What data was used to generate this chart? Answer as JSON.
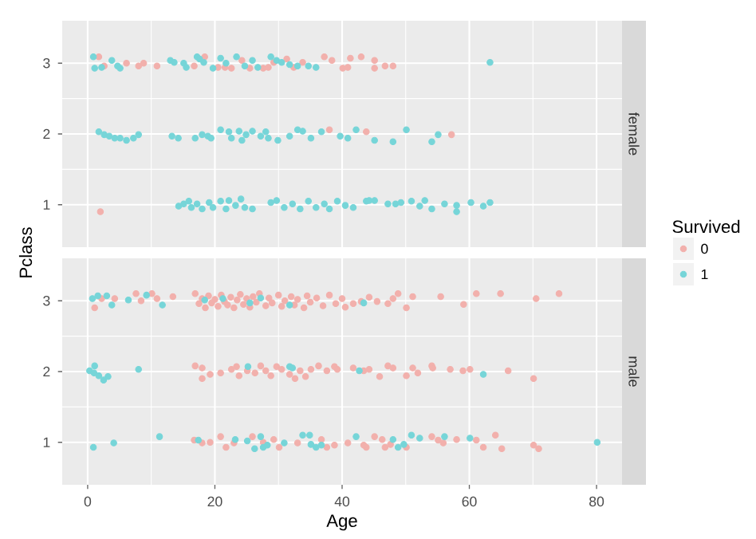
{
  "chart_data": [
    {
      "type": "scatter",
      "title": "female",
      "ylabel": "Pclass",
      "legend_title": "Survived",
      "legend": "right",
      "xlim": [
        -4,
        84
      ],
      "xticks": [
        0,
        20,
        40,
        60,
        80
      ],
      "ylim": [
        0.4,
        3.6
      ],
      "yticks": [
        1,
        2,
        3
      ],
      "tick_labels": "y",
      "grid": true,
      "marker": "circle",
      "series": [
        {
          "name": "0",
          "color": "#f2b0ac",
          "x": [
            1.75,
            2.6,
            6.1,
            8,
            8.8,
            10.9,
            16.75,
            18.4,
            20.5,
            21.6,
            22.6,
            24.25,
            25.5,
            27.6,
            28.4,
            29.25,
            31.3,
            32.4,
            33.8,
            37.2,
            38.4,
            40.1,
            40.9,
            41.3,
            43,
            45.1,
            45.1,
            46.75,
            48,
            38,
            43.8,
            57.2,
            2.0
          ],
          "values": [
            3.09,
            2.96,
            3.0,
            2.96,
            3.0,
            2.96,
            2.96,
            3.09,
            2.94,
            2.94,
            2.93,
            3.04,
            2.93,
            2.93,
            2.94,
            3.01,
            3.06,
            2.94,
            3.01,
            3.09,
            3.04,
            2.93,
            2.94,
            3.07,
            3.09,
            3.04,
            2.93,
            2.96,
            2.96,
            2.06,
            2.03,
            1.99,
            0.9
          ]
        },
        {
          "name": "1",
          "color": "#76d5d8",
          "x": [
            0.9,
            1.1,
            2.2,
            3.8,
            4.7,
            5.1,
            13,
            13.6,
            15.1,
            15.5,
            17.2,
            17.6,
            18.25,
            19.7,
            20.9,
            21.75,
            23.4,
            24.7,
            25.9,
            26.75,
            28.8,
            29.7,
            30.5,
            31.75,
            33,
            34.7,
            35.9,
            63.25,
            1.75,
            2.6,
            3.4,
            4.25,
            5.1,
            6.1,
            7.2,
            8,
            13.25,
            14.25,
            16.9,
            18,
            18.9,
            19.4,
            20.9,
            22.2,
            22.6,
            23.8,
            24.25,
            24.9,
            25.9,
            27.2,
            28,
            28.4,
            29.9,
            31.75,
            33,
            33.8,
            35.1,
            36.75,
            39.7,
            40.9,
            42.2,
            45.1,
            48,
            50.1,
            54.1,
            55.1,
            14.3,
            15.1,
            15.9,
            16.3,
            17.2,
            18,
            19.1,
            19.7,
            20.9,
            21.75,
            22.2,
            23.25,
            24.1,
            24.7,
            25.9,
            28.8,
            29.7,
            30.9,
            32.2,
            33.4,
            34.7,
            35.9,
            37.2,
            38,
            39.25,
            40.5,
            41.75,
            43.8,
            44.25,
            45.1,
            47.2,
            48.4,
            49.25,
            50.9,
            52.2,
            53,
            54.1,
            56.1,
            58,
            58,
            60.25,
            62.2,
            63.25
          ],
          "values": [
            3.09,
            2.93,
            2.94,
            3.04,
            2.96,
            2.93,
            3.04,
            3.01,
            3.0,
            2.94,
            3.09,
            3.06,
            3.01,
            2.93,
            3.07,
            3.0,
            3.09,
            2.96,
            3.04,
            2.94,
            3.09,
            3.04,
            3.01,
            2.98,
            2.96,
            2.96,
            2.94,
            3.01,
            2.03,
            1.99,
            1.97,
            1.94,
            1.94,
            1.91,
            1.94,
            1.99,
            1.97,
            1.94,
            1.94,
            1.99,
            1.97,
            1.94,
            2.06,
            2.03,
            1.94,
            2.04,
            1.91,
            1.99,
            2.04,
            1.97,
            2.03,
            1.94,
            1.91,
            1.97,
            2.06,
            2.04,
            1.94,
            2.03,
            1.97,
            1.94,
            2.06,
            1.91,
            1.89,
            2.06,
            1.89,
            1.99,
            0.98,
            1.01,
            1.05,
            0.96,
            1.01,
            0.94,
            1.03,
            0.96,
            1.05,
            0.94,
            1.06,
            0.99,
            1.08,
            0.96,
            0.94,
            1.03,
            1.06,
            0.96,
            1.01,
            0.94,
            1.05,
            0.96,
            1.01,
            0.94,
            1.05,
            0.99,
            0.96,
            1.05,
            1.06,
            1.06,
            1.01,
            1.01,
            1.03,
            1.05,
            0.98,
            1.06,
            0.94,
            1.01,
            0.99,
            0.9,
            1.03,
            0.98,
            1.03
          ]
        }
      ]
    },
    {
      "type": "scatter",
      "title": "male",
      "xlabel": "Age",
      "xlim": [
        -4,
        84
      ],
      "xticks": [
        0,
        20,
        40,
        60,
        80
      ],
      "ylim": [
        0.4,
        3.6
      ],
      "yticks": [
        1,
        2,
        3
      ],
      "grid": true,
      "marker": "circle",
      "series": [
        {
          "color": "#f2b0ac",
          "x": [
            1.1,
            2.2,
            4.25,
            7.6,
            8.4,
            10.1,
            10.9,
            13.4,
            16.9,
            17.5,
            18,
            18.5,
            19,
            19.5,
            20,
            20.5,
            21,
            21.5,
            22,
            22.5,
            23,
            23.5,
            24,
            24.5,
            25,
            25.5,
            26,
            26.5,
            27,
            28,
            28.5,
            29,
            30,
            30.5,
            31,
            32,
            32.5,
            33,
            34,
            34.5,
            35,
            36,
            37,
            38,
            39,
            40,
            40.5,
            41.75,
            43,
            44.25,
            45.5,
            47.2,
            48,
            48.8,
            50.1,
            51.1,
            55.5,
            59.1,
            61.1,
            64.9,
            70.5,
            74.1,
            16.9,
            18,
            18,
            19.25,
            20.9,
            22.6,
            23.4,
            23.8,
            25.1,
            26.3,
            27.2,
            28,
            28.8,
            29.7,
            30.5,
            31.75,
            32.6,
            33.4,
            34.25,
            35.1,
            36.3,
            37.6,
            38.8,
            39.25,
            41.75,
            43.4,
            44.25,
            45.9,
            47.2,
            48,
            50.1,
            51.1,
            51.9,
            54.1,
            54.25,
            57,
            59,
            60.1,
            66.1,
            70.1,
            16.75,
            18,
            19.25,
            20.9,
            21.75,
            23,
            25.9,
            27.6,
            29.25,
            30.1,
            33,
            36.75,
            37.6,
            38.8,
            40.9,
            43.8,
            43.4,
            45.1,
            46.3,
            46.75,
            47.6,
            50.1,
            54.1,
            55.1,
            55.9,
            58,
            61.1,
            62.2,
            64.1,
            65.1,
            70.1,
            70.9
          ],
          "values": [
            2.9,
            3.03,
            3.03,
            3.1,
            3.0,
            3.1,
            3.03,
            3.06,
            3.1,
            2.96,
            3.03,
            2.9,
            3.07,
            2.97,
            3.02,
            2.92,
            3.08,
            2.99,
            2.94,
            3.05,
            2.9,
            3.01,
            3.09,
            2.95,
            3.03,
            2.91,
            3.06,
            2.98,
            3.1,
            2.93,
            3.04,
            2.97,
            3.08,
            2.92,
            3.0,
            3.06,
            2.94,
            3.02,
            2.9,
            3.07,
            2.98,
            3.04,
            2.93,
            3.08,
            2.96,
            3.03,
            2.91,
            2.96,
            2.99,
            3.05,
            2.99,
            2.96,
            3.03,
            3.1,
            2.9,
            3.06,
            3.06,
            2.95,
            3.1,
            3.1,
            3.03,
            3.1,
            2.08,
            2.05,
            1.9,
            1.96,
            1.98,
            2.03,
            2.07,
            1.94,
            2.01,
            1.98,
            2.08,
            2.01,
            1.94,
            2.07,
            2.03,
            1.96,
            1.9,
            2.01,
            1.93,
            2.03,
            2.08,
            2.01,
            2.07,
            2.03,
            2.05,
            2.01,
            2.03,
            1.93,
            2.08,
            2.05,
            1.94,
            2.05,
            1.98,
            2.08,
            2.05,
            2.03,
            2.01,
            2.03,
            2.01,
            1.9,
            1.03,
            0.99,
            1.0,
            1.08,
            0.93,
            0.99,
            1.08,
            1.0,
            1.04,
            0.93,
            0.99,
            1.04,
            0.93,
            0.96,
            0.99,
            0.93,
            0.96,
            1.08,
            1.04,
            0.93,
            0.97,
            0.93,
            1.08,
            1.03,
            0.99,
            1.04,
            1.03,
            0.93,
            1.1,
            0.91,
            0.96,
            0.91
          ]
        },
        {
          "color": "#76d5d8",
          "x": [
            0.75,
            1.6,
            3,
            3.8,
            6.4,
            9.25,
            11.75,
            18.4,
            21.25,
            25.5,
            27.2,
            31.75,
            43.4,
            0.3,
            1,
            1.1,
            1.75,
            2.5,
            3.2,
            8,
            25.2,
            31.75,
            32.2,
            42.7,
            62.2,
            0.9,
            4.1,
            11.3,
            17.4,
            23.2,
            25.1,
            26.25,
            27.2,
            27.6,
            28.25,
            30.9,
            33.8,
            34.9,
            35.1,
            35.9,
            36.75,
            42.2,
            48,
            48.8,
            49.7,
            50.9,
            52.2,
            56.1,
            60.1,
            80.1
          ],
          "values": [
            3.03,
            3.07,
            3.07,
            2.94,
            3.01,
            3.08,
            2.94,
            3.01,
            3.03,
            2.97,
            3.04,
            2.94,
            2.97,
            2.01,
            1.98,
            2.08,
            1.94,
            1.88,
            1.93,
            2.03,
            2.07,
            2.07,
            2.05,
            2.01,
            1.96,
            0.93,
            0.99,
            1.08,
            1.03,
            1.04,
            1.02,
            0.91,
            1.08,
            0.93,
            0.96,
            0.99,
            1.1,
            1.1,
            0.97,
            0.93,
            0.96,
            1.08,
            1.04,
            0.93,
            0.97,
            1.1,
            1.06,
            1.08,
            1.06,
            1.0
          ]
        }
      ]
    }
  ]
}
